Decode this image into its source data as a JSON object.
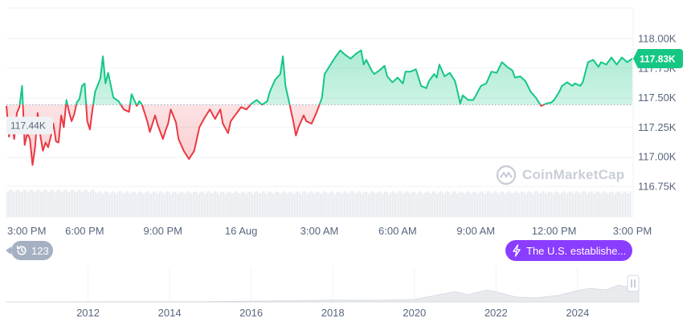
{
  "chart_data": {
    "type": "area",
    "reference_value": 117.44,
    "reference_label": "117.44K",
    "current_value": 117.83,
    "current_label": "117.83K",
    "ylim": [
      116.6,
      118.25
    ],
    "y_ticks": [
      {
        "value": 118.0,
        "label": "118.00K"
      },
      {
        "value": 117.75,
        "label": "117.75K"
      },
      {
        "value": 117.5,
        "label": "117.50K"
      },
      {
        "value": 117.25,
        "label": "117.25K"
      },
      {
        "value": 117.0,
        "label": "117.00K"
      },
      {
        "value": 116.75,
        "label": "116.75K"
      }
    ],
    "x_range": [
      0,
      24
    ],
    "x_ticks": [
      {
        "value": 0,
        "label": "3:00 PM"
      },
      {
        "value": 3,
        "label": "6:00 PM"
      },
      {
        "value": 6,
        "label": "9:00 PM"
      },
      {
        "value": 9,
        "label": "16 Aug"
      },
      {
        "value": 12,
        "label": "3:00 AM"
      },
      {
        "value": 15,
        "label": "6:00 AM"
      },
      {
        "value": 18,
        "label": "9:00 AM"
      },
      {
        "value": 21,
        "label": "12:00 PM"
      },
      {
        "value": 24,
        "label": "3:00 PM"
      }
    ],
    "series": [
      {
        "points": [
          [
            0.0,
            117.43
          ],
          [
            0.1,
            117.17
          ],
          [
            0.2,
            117.3
          ],
          [
            0.3,
            117.15
          ],
          [
            0.4,
            117.37
          ],
          [
            0.5,
            117.42
          ],
          [
            0.6,
            117.6
          ],
          [
            0.7,
            117.1
          ],
          [
            0.8,
            117.2
          ],
          [
            0.9,
            117.15
          ],
          [
            1.0,
            116.93
          ],
          [
            1.1,
            117.08
          ],
          [
            1.2,
            117.37
          ],
          [
            1.3,
            117.18
          ],
          [
            1.4,
            117.05
          ],
          [
            1.5,
            117.12
          ],
          [
            1.6,
            117.08
          ],
          [
            1.7,
            117.17
          ],
          [
            1.8,
            117.28
          ],
          [
            1.9,
            117.13
          ],
          [
            2.0,
            117.12
          ],
          [
            2.1,
            117.35
          ],
          [
            2.2,
            117.25
          ],
          [
            2.3,
            117.48
          ],
          [
            2.4,
            117.38
          ],
          [
            2.5,
            117.3
          ],
          [
            2.6,
            117.36
          ],
          [
            2.7,
            117.46
          ],
          [
            2.8,
            117.49
          ],
          [
            2.9,
            117.6
          ],
          [
            3.0,
            117.62
          ],
          [
            3.1,
            117.3
          ],
          [
            3.2,
            117.23
          ],
          [
            3.3,
            117.4
          ],
          [
            3.4,
            117.55
          ],
          [
            3.6,
            117.66
          ],
          [
            3.7,
            117.85
          ],
          [
            3.8,
            117.62
          ],
          [
            3.9,
            117.71
          ],
          [
            4.1,
            117.5
          ],
          [
            4.3,
            117.47
          ],
          [
            4.5,
            117.4
          ],
          [
            4.7,
            117.38
          ],
          [
            4.8,
            117.53
          ],
          [
            5.0,
            117.43
          ],
          [
            5.1,
            117.47
          ],
          [
            5.2,
            117.44
          ],
          [
            5.4,
            117.3
          ],
          [
            5.5,
            117.21
          ],
          [
            5.7,
            117.35
          ],
          [
            5.8,
            117.27
          ],
          [
            6.0,
            117.15
          ],
          [
            6.1,
            117.22
          ],
          [
            6.2,
            117.28
          ],
          [
            6.3,
            117.4
          ],
          [
            6.5,
            117.29
          ],
          [
            6.6,
            117.15
          ],
          [
            6.8,
            117.05
          ],
          [
            7.0,
            116.98
          ],
          [
            7.2,
            117.05
          ],
          [
            7.4,
            117.25
          ],
          [
            7.6,
            117.33
          ],
          [
            7.8,
            117.4
          ],
          [
            8.0,
            117.32
          ],
          [
            8.2,
            117.4
          ],
          [
            8.3,
            117.28
          ],
          [
            8.5,
            117.2
          ],
          [
            8.6,
            117.3
          ],
          [
            8.8,
            117.36
          ],
          [
            9.0,
            117.42
          ],
          [
            9.2,
            117.4
          ],
          [
            9.4,
            117.45
          ],
          [
            9.6,
            117.48
          ],
          [
            9.8,
            117.44
          ],
          [
            10.0,
            117.47
          ],
          [
            10.1,
            117.55
          ],
          [
            10.3,
            117.65
          ],
          [
            10.5,
            117.7
          ],
          [
            10.6,
            117.85
          ],
          [
            10.7,
            117.6
          ],
          [
            10.8,
            117.5
          ],
          [
            10.9,
            117.4
          ],
          [
            11.0,
            117.3
          ],
          [
            11.1,
            117.18
          ],
          [
            11.2,
            117.25
          ],
          [
            11.4,
            117.35
          ],
          [
            11.5,
            117.3
          ],
          [
            11.7,
            117.28
          ],
          [
            11.9,
            117.38
          ],
          [
            12.1,
            117.5
          ],
          [
            12.2,
            117.7
          ],
          [
            12.4,
            117.77
          ],
          [
            12.6,
            117.84
          ],
          [
            12.8,
            117.9
          ],
          [
            13.0,
            117.86
          ],
          [
            13.2,
            117.83
          ],
          [
            13.4,
            117.87
          ],
          [
            13.6,
            117.9
          ],
          [
            13.7,
            117.78
          ],
          [
            13.8,
            117.82
          ],
          [
            14.0,
            117.73
          ],
          [
            14.1,
            117.7
          ],
          [
            14.3,
            117.73
          ],
          [
            14.5,
            117.77
          ],
          [
            14.6,
            117.68
          ],
          [
            14.8,
            117.63
          ],
          [
            15.0,
            117.67
          ],
          [
            15.2,
            117.62
          ],
          [
            15.3,
            117.72
          ],
          [
            15.5,
            117.72
          ],
          [
            15.7,
            117.74
          ],
          [
            15.9,
            117.6
          ],
          [
            16.1,
            117.58
          ],
          [
            16.2,
            117.64
          ],
          [
            16.4,
            117.7
          ],
          [
            16.5,
            117.67
          ],
          [
            16.6,
            117.78
          ],
          [
            16.8,
            117.68
          ],
          [
            17.0,
            117.71
          ],
          [
            17.2,
            117.64
          ],
          [
            17.3,
            117.55
          ],
          [
            17.4,
            117.45
          ],
          [
            17.5,
            117.52
          ],
          [
            17.7,
            117.48
          ],
          [
            17.9,
            117.48
          ],
          [
            18.0,
            117.52
          ],
          [
            18.2,
            117.6
          ],
          [
            18.4,
            117.62
          ],
          [
            18.6,
            117.72
          ],
          [
            18.8,
            117.71
          ],
          [
            19.0,
            117.8
          ],
          [
            19.2,
            117.76
          ],
          [
            19.4,
            117.73
          ],
          [
            19.5,
            117.67
          ],
          [
            19.7,
            117.68
          ],
          [
            19.9,
            117.64
          ],
          [
            20.1,
            117.55
          ],
          [
            20.3,
            117.5
          ],
          [
            20.5,
            117.43
          ],
          [
            20.7,
            117.45
          ],
          [
            20.9,
            117.46
          ],
          [
            21.0,
            117.48
          ],
          [
            21.2,
            117.55
          ],
          [
            21.3,
            117.6
          ],
          [
            21.5,
            117.63
          ],
          [
            21.7,
            117.6
          ],
          [
            21.8,
            117.62
          ],
          [
            22.0,
            117.6
          ],
          [
            22.1,
            117.63
          ],
          [
            22.3,
            117.8
          ],
          [
            22.5,
            117.82
          ],
          [
            22.7,
            117.76
          ],
          [
            22.8,
            117.8
          ],
          [
            23.0,
            117.78
          ],
          [
            23.2,
            117.84
          ],
          [
            23.4,
            117.78
          ],
          [
            23.6,
            117.84
          ],
          [
            23.8,
            117.8
          ],
          [
            24.0,
            117.83
          ]
        ]
      }
    ],
    "range_axis": {
      "x_range": [
        2010.0,
        2025.5
      ],
      "x_ticks": [
        {
          "value": 2012,
          "label": "2012"
        },
        {
          "value": 2014,
          "label": "2014"
        },
        {
          "value": 2016,
          "label": "2016"
        },
        {
          "value": 2018,
          "label": "2018"
        },
        {
          "value": 2020,
          "label": "2020"
        },
        {
          "value": 2022,
          "label": "2022"
        },
        {
          "value": 2024,
          "label": "2024"
        }
      ]
    },
    "colors": {
      "up": "#16c784",
      "down": "#ea3943",
      "up_fill": "#16c784",
      "down_fill": "#ea3943",
      "reference_line": "#a6b0c3",
      "grid": "#eff2f5",
      "volume": "#e6e9ee",
      "navigator": "#e8eaee"
    }
  },
  "watermark": {
    "text": "CoinMarketCap"
  },
  "history_badge": {
    "count": "123",
    "icon": "history-icon"
  },
  "event_badge": {
    "text": "The U.S. establishe...",
    "icon": "bolt-icon",
    "color": "#8b3dff"
  }
}
